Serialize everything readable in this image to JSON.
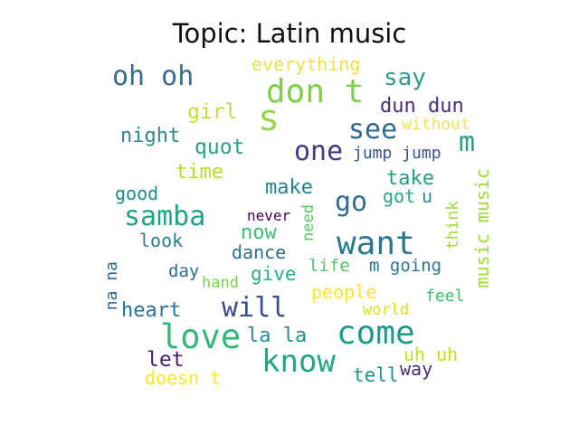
{
  "title": "Topic: Latin music",
  "words": [
    {
      "text": "oh oh",
      "color": "#3b6b8c"
    },
    {
      "text": "everything",
      "color": "#e8e34a"
    },
    {
      "text": "say",
      "color": "#2e9a8a"
    },
    {
      "text": "don t",
      "color": "#7fcf4a"
    },
    {
      "text": "s",
      "color": "#93d84a"
    },
    {
      "text": "dun dun",
      "color": "#4a2c73"
    },
    {
      "text": "girl",
      "color": "#c7dc3a"
    },
    {
      "text": "without",
      "color": "#f0e55a"
    },
    {
      "text": "see",
      "color": "#31688e"
    },
    {
      "text": "m",
      "color": "#25a07f"
    },
    {
      "text": "night",
      "color": "#2c8a8a"
    },
    {
      "text": "quot",
      "color": "#2aa186"
    },
    {
      "text": "one",
      "color": "#443983"
    },
    {
      "text": "jump jump",
      "color": "#3b528b"
    },
    {
      "text": "time",
      "color": "#b5de2b"
    },
    {
      "text": "take",
      "color": "#2a9a88"
    },
    {
      "text": "good",
      "color": "#238a8d"
    },
    {
      "text": "make",
      "color": "#22838e"
    },
    {
      "text": "go",
      "color": "#2e6d8e"
    },
    {
      "text": "got",
      "color": "#25a684"
    },
    {
      "text": "u",
      "color": "#2c8c8a"
    },
    {
      "text": "samba",
      "color": "#20a386"
    },
    {
      "text": "never",
      "color": "#440154"
    },
    {
      "text": "need",
      "color": "#58c765"
    },
    {
      "text": "think",
      "color": "#a5db36"
    },
    {
      "text": "music music",
      "color": "#a0da39"
    },
    {
      "text": "now",
      "color": "#3fbc73"
    },
    {
      "text": "want",
      "color": "#2a788e"
    },
    {
      "text": "look",
      "color": "#287d8e"
    },
    {
      "text": "dance",
      "color": "#2d708e"
    },
    {
      "text": "na na",
      "color": "#33638d"
    },
    {
      "text": "life",
      "color": "#52c569"
    },
    {
      "text": "m going",
      "color": "#2a788e"
    },
    {
      "text": "day",
      "color": "#31688e"
    },
    {
      "text": "give",
      "color": "#29af7f"
    },
    {
      "text": "hand",
      "color": "#7ad151"
    },
    {
      "text": "people",
      "color": "#fde725"
    },
    {
      "text": "feel",
      "color": "#3dbc74"
    },
    {
      "text": "heart",
      "color": "#2c728e"
    },
    {
      "text": "will",
      "color": "#3e4a89"
    },
    {
      "text": "world",
      "color": "#d8e219"
    },
    {
      "text": "love",
      "color": "#35b779"
    },
    {
      "text": "la la",
      "color": "#2c8b8c"
    },
    {
      "text": "come",
      "color": "#1f9a8a"
    },
    {
      "text": "know",
      "color": "#22a785"
    },
    {
      "text": "uh uh",
      "color": "#c2df23"
    },
    {
      "text": "let",
      "color": "#481f70"
    },
    {
      "text": "way",
      "color": "#472d7b"
    },
    {
      "text": "doesn t",
      "color": "#fde725"
    },
    {
      "text": "tell",
      "color": "#21918c"
    }
  ]
}
